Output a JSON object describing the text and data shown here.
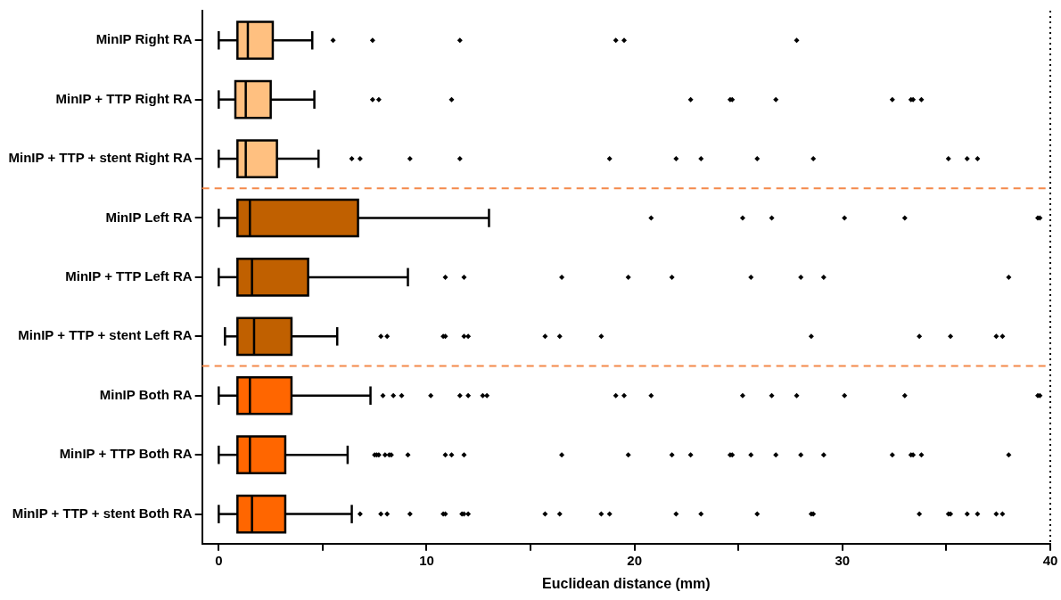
{
  "chart_data": {
    "type": "box",
    "orientation": "horizontal",
    "xlabel": "Euclidean distance (mm)",
    "categories": [
      "MinIP Right RA",
      "MinIP + TTP Right RA",
      "MinIP + TTP + stent Right RA",
      "MinIP Left RA",
      "MinIP + TTP Left RA",
      "MinIP + TTP + stent Left RA",
      "MinIP Both RA",
      "MinIP + TTP Both RA",
      "MinIP + TTP + stent Both RA"
    ],
    "colors": [
      "#ffc080",
      "#ffc080",
      "#ffc080",
      "#c06000",
      "#c06000",
      "#c06000",
      "#ff6600",
      "#ff6600",
      "#ff6600"
    ],
    "boxes": [
      {
        "low": 0,
        "q1": 0.9,
        "median": 1.4,
        "q3": 2.6,
        "high": 4.5,
        "outliers": [
          5.5,
          7.4,
          11.6,
          19.1,
          19.5,
          27.8
        ]
      },
      {
        "low": 0,
        "q1": 0.8,
        "median": 1.3,
        "q3": 2.5,
        "high": 4.6,
        "outliers": [
          7.4,
          7.7,
          11.2,
          22.7,
          24.6,
          24.7,
          26.8,
          32.4,
          33.3,
          33.4,
          33.8
        ]
      },
      {
        "low": 0,
        "q1": 0.9,
        "median": 1.3,
        "q3": 2.8,
        "high": 4.8,
        "outliers": [
          6.4,
          6.8,
          9.2,
          11.6,
          18.8,
          22.0,
          23.2,
          25.9,
          28.6,
          35.1,
          36.0,
          36.5
        ]
      },
      {
        "low": 0,
        "q1": 0.9,
        "median": 1.5,
        "q3": 6.7,
        "high": 13.0,
        "outliers": [
          20.8,
          25.2,
          26.6,
          30.1,
          33.0,
          39.4,
          39.5
        ]
      },
      {
        "low": 0,
        "q1": 0.9,
        "median": 1.6,
        "q3": 4.3,
        "high": 9.1,
        "outliers": [
          10.9,
          11.8,
          16.5,
          19.7,
          21.8,
          25.6,
          28.0,
          29.1,
          38.0
        ]
      },
      {
        "low": 0.3,
        "q1": 0.9,
        "median": 1.7,
        "q3": 3.5,
        "high": 5.7,
        "outliers": [
          7.8,
          8.1,
          10.8,
          10.9,
          11.8,
          12.0,
          15.7,
          16.4,
          18.4,
          28.5,
          33.7,
          35.2,
          37.4,
          37.7
        ]
      },
      {
        "low": 0,
        "q1": 0.9,
        "median": 1.5,
        "q3": 3.5,
        "high": 7.3,
        "outliers": [
          7.9,
          8.4,
          8.8,
          10.2,
          11.6,
          12.0,
          12.7,
          12.9,
          19.1,
          19.5,
          20.8,
          25.2,
          26.6,
          27.8,
          30.1,
          33.0,
          39.4,
          39.5
        ]
      },
      {
        "low": 0,
        "q1": 0.9,
        "median": 1.5,
        "q3": 3.2,
        "high": 6.2,
        "outliers": [
          7.5,
          7.6,
          7.7,
          8.0,
          8.2,
          8.3,
          9.1,
          10.9,
          11.2,
          11.8,
          16.5,
          19.7,
          21.8,
          22.7,
          24.6,
          24.7,
          25.6,
          26.8,
          28.0,
          29.1,
          32.4,
          33.3,
          33.4,
          33.8,
          38.0
        ]
      },
      {
        "low": 0,
        "q1": 0.9,
        "median": 1.6,
        "q3": 3.2,
        "high": 6.4,
        "outliers": [
          6.8,
          7.8,
          8.1,
          9.2,
          10.8,
          10.9,
          11.7,
          11.8,
          12.0,
          15.7,
          16.4,
          18.4,
          18.8,
          22.0,
          23.2,
          25.9,
          28.5,
          28.6,
          33.7,
          35.1,
          35.2,
          36.0,
          36.5,
          37.4,
          37.7
        ]
      }
    ],
    "xlim": [
      -0.8,
      40
    ],
    "xticks": [
      0,
      {
        "value": 5,
        "label": null
      },
      10,
      {
        "value": 15,
        "label": null
      },
      20,
      {
        "value": 25,
        "label": null
      },
      30,
      {
        "value": 35,
        "label": null
      },
      40
    ],
    "ref_lines": [
      {
        "axis": "x",
        "value": 40,
        "color": "#000000",
        "line_style": "dotted"
      }
    ],
    "marker": "diamond",
    "legend": false,
    "grid": false
  }
}
